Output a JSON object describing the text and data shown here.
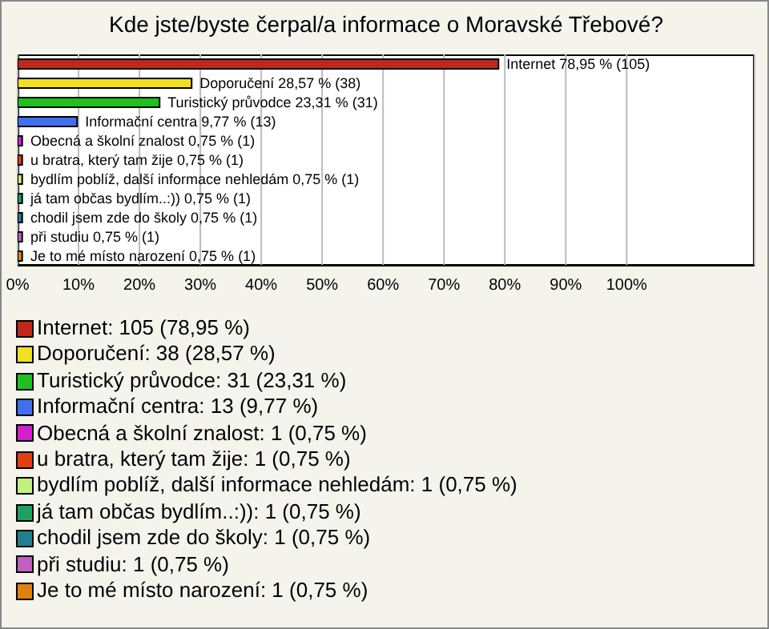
{
  "chart_data": {
    "type": "bar",
    "orientation": "horizontal",
    "stacked": true,
    "title": "Kde jste/byste čerpal/a informace o Moravské Třebové?",
    "categories": [
      "Internet",
      "Doporučení",
      "Turistický průvodce",
      "Informační centra",
      "Obecná a školní znalost",
      "u bratra, který tam žije",
      "bydlím poblíž, další informace nehledám",
      "já tam občas bydlím..:))",
      "chodil jsem zde do školy",
      "při studiu",
      "Je to mé místo narození"
    ],
    "series": [
      {
        "name": "Internet: 105 (78,95 %)",
        "color": "#c0281c",
        "values": [
          78.95,
          null,
          null,
          null,
          null,
          null,
          null,
          null,
          null,
          null,
          null
        ],
        "value_labels": [
          "78,95 % (105)",
          null,
          null,
          null,
          null,
          null,
          null,
          null,
          null,
          null,
          null
        ]
      },
      {
        "name": "Doporučení: 38 (28,57 %)",
        "color": "#f0e020",
        "values": [
          null,
          28.57,
          null,
          null,
          null,
          null,
          null,
          null,
          null,
          null,
          null
        ],
        "value_labels": [
          null,
          "28,57 % (38)",
          null,
          null,
          null,
          null,
          null,
          null,
          null,
          null,
          null
        ]
      },
      {
        "name": "Turistický průvodce: 31 (23,31 %)",
        "color": "#20c020",
        "values": [
          null,
          null,
          23.31,
          null,
          null,
          null,
          null,
          null,
          null,
          null,
          null
        ],
        "value_labels": [
          null,
          null,
          "23,31 % (31)",
          null,
          null,
          null,
          null,
          null,
          null,
          null,
          null
        ]
      },
      {
        "name": "Informační centra: 13 (9,77 %)",
        "color": "#4070f0",
        "values": [
          null,
          null,
          null,
          9.77,
          null,
          null,
          null,
          null,
          null,
          null,
          null
        ],
        "value_labels": [
          null,
          null,
          null,
          "9,77 % (13)",
          null,
          null,
          null,
          null,
          null,
          null,
          null
        ]
      },
      {
        "name": "Obecná a školní znalost: 1 (0,75 %)",
        "color": "#d020d0",
        "values": [
          null,
          null,
          null,
          null,
          0.75,
          null,
          null,
          null,
          null,
          null,
          null
        ],
        "value_labels": [
          null,
          null,
          null,
          null,
          "0,75 % (1)",
          null,
          null,
          null,
          null,
          null,
          null
        ]
      },
      {
        "name": "u bratra, který tam žije: 1 (0,75 %)",
        "color": "#e04010",
        "values": [
          null,
          null,
          null,
          null,
          null,
          0.75,
          null,
          null,
          null,
          null,
          null
        ],
        "value_labels": [
          null,
          null,
          null,
          null,
          null,
          "0,75 % (1)",
          null,
          null,
          null,
          null,
          null
        ]
      },
      {
        "name": "bydlím poblíž, další informace nehledám: 1 (0,75 %)",
        "color": "#c0f080",
        "values": [
          null,
          null,
          null,
          null,
          null,
          null,
          0.75,
          null,
          null,
          null,
          null
        ],
        "value_labels": [
          null,
          null,
          null,
          null,
          null,
          null,
          "0,75 % (1)",
          null,
          null,
          null,
          null
        ]
      },
      {
        "name": "já tam občas bydlím..:)): 1 (0,75 %)",
        "color": "#20a060",
        "values": [
          null,
          null,
          null,
          null,
          null,
          null,
          null,
          0.75,
          null,
          null,
          null
        ],
        "value_labels": [
          null,
          null,
          null,
          null,
          null,
          null,
          null,
          "0,75 % (1)",
          null,
          null,
          null
        ]
      },
      {
        "name": "chodil jsem zde do školy: 1 (0,75 %)",
        "color": "#208090",
        "values": [
          null,
          null,
          null,
          null,
          null,
          null,
          null,
          null,
          0.75,
          null,
          null
        ],
        "value_labels": [
          null,
          null,
          null,
          null,
          null,
          null,
          null,
          null,
          "0,75 % (1)",
          null,
          null
        ]
      },
      {
        "name": "při studiu: 1 (0,75 %)",
        "color": "#c060c0",
        "values": [
          null,
          null,
          null,
          null,
          null,
          null,
          null,
          null,
          null,
          0.75,
          null
        ],
        "value_labels": [
          null,
          null,
          null,
          null,
          null,
          null,
          null,
          null,
          null,
          "0,75 % (1)",
          null
        ]
      },
      {
        "name": "Je to mé místo narození: 1 (0,75 %)",
        "color": "#e08010",
        "values": [
          null,
          null,
          null,
          null,
          null,
          null,
          null,
          null,
          null,
          null,
          0.75
        ],
        "value_labels": [
          null,
          null,
          null,
          null,
          null,
          null,
          null,
          null,
          null,
          null,
          "0,75 % (1)"
        ]
      }
    ],
    "xlim": [
      0,
      121
    ],
    "xticks": [
      {
        "value": 0,
        "label": "0%"
      },
      {
        "value": 10,
        "label": "10%"
      },
      {
        "value": 20,
        "label": "20%"
      },
      {
        "value": 30,
        "label": "30%"
      },
      {
        "value": 40,
        "label": "40%"
      },
      {
        "value": 50,
        "label": "50%"
      },
      {
        "value": 60,
        "label": "60%"
      },
      {
        "value": 70,
        "label": "70%"
      },
      {
        "value": 80,
        "label": "80%"
      },
      {
        "value": 90,
        "label": "90%"
      },
      {
        "value": 100,
        "label": "100%"
      }
    ],
    "grid": "x",
    "legend": "bottom",
    "tick_labels": "x"
  }
}
